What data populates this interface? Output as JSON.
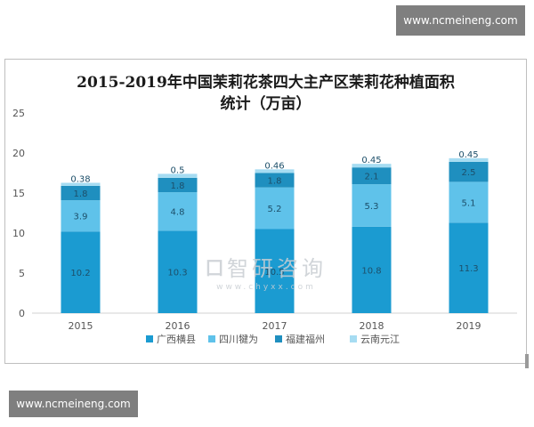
{
  "badges": {
    "top": "www.ncmeineng.com",
    "bottom": "www.ncmeineng.com"
  },
  "watermark": {
    "name": "智研咨询",
    "url": "www.chyxx.com"
  },
  "chart_data": {
    "type": "bar",
    "stacked": true,
    "title": "2015-2019年中国茉莉花茶四大主产区茉莉花种植面积\n统计（万亩）",
    "categories": [
      "2015",
      "2016",
      "2017",
      "2018",
      "2019"
    ],
    "ylim": [
      0,
      25
    ],
    "yticks": [
      "0",
      "5",
      "10",
      "15",
      "20",
      "25"
    ],
    "grid": false,
    "legend_position": "bottom",
    "series": [
      {
        "name": "广西横县",
        "color": "#1b9bd1",
        "values": [
          10.2,
          10.3,
          10.5,
          10.8,
          11.3
        ],
        "labels": [
          "10.2",
          "10.3",
          "10.5",
          "10.8",
          "11.3"
        ]
      },
      {
        "name": "四川犍为",
        "color": "#5fc2ea",
        "values": [
          3.9,
          4.8,
          5.2,
          5.3,
          5.1
        ],
        "labels": [
          "3.9",
          "4.8",
          "5.2",
          "5.3",
          "5.1"
        ]
      },
      {
        "name": "福建福州",
        "color": "#1f8fbf",
        "values": [
          1.8,
          1.8,
          1.8,
          2.1,
          2.5
        ],
        "labels": [
          "1.8",
          "1.8",
          "1.8",
          "2.1",
          "2.5"
        ]
      },
      {
        "name": "云南元江",
        "color": "#a6dcf2",
        "values": [
          0.38,
          0.5,
          0.46,
          0.45,
          0.45
        ],
        "labels": [
          "0.38",
          "0.5",
          "0.46",
          "0.45",
          "0.45"
        ]
      }
    ]
  }
}
